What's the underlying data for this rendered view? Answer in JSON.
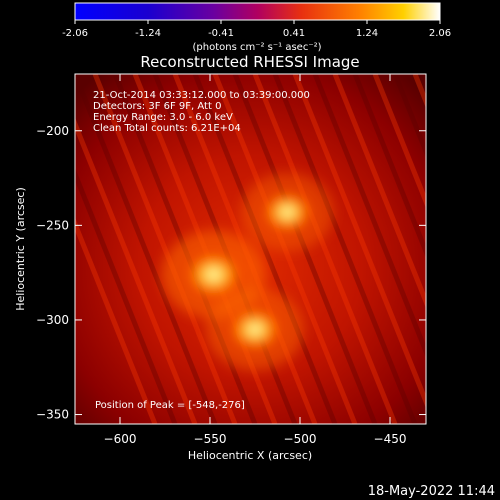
{
  "colorbar": {
    "ticks": [
      "-2.06",
      "-1.24",
      "-0.41",
      "0.41",
      "1.24",
      "2.06"
    ],
    "unit_label": "(photons cm⁻² s⁻¹ asec⁻²)",
    "range": [
      -2.06,
      2.06
    ]
  },
  "footer": {
    "timestamp": "18-May-2022 11:44"
  },
  "chart_data": {
    "type": "heatmap",
    "title": "Reconstructed RHESSI Image",
    "xlabel": "Heliocentric X (arcsec)",
    "ylabel": "Heliocentric Y (arcsec)",
    "xlim": [
      -625,
      -430
    ],
    "ylim": [
      -355,
      -170
    ],
    "x_ticks": [
      -600,
      -550,
      -500,
      -450
    ],
    "y_ticks": [
      -200,
      -250,
      -300,
      -350
    ],
    "x_tick_labels": [
      "−600",
      "−550",
      "−500",
      "−450"
    ],
    "y_tick_labels": [
      "−200",
      "−250",
      "−300",
      "−350"
    ],
    "info_lines": [
      "21-Oct-2014 03:33:12.000 to 03:39:00.000",
      "Detectors: 3F 6F 9F, Att 0",
      "Energy Range: 3.0 - 6.0 keV",
      "Clean     Total counts: 6.21E+04"
    ],
    "peak_label": "Position of Peak = [-548,-276]",
    "sources": [
      {
        "x": -548,
        "y": -276,
        "intensity": 1.0
      },
      {
        "x": -525,
        "y": -305,
        "intensity": 0.85
      },
      {
        "x": -507,
        "y": -243,
        "intensity": 0.75
      }
    ],
    "colormap": "red-temperature"
  }
}
